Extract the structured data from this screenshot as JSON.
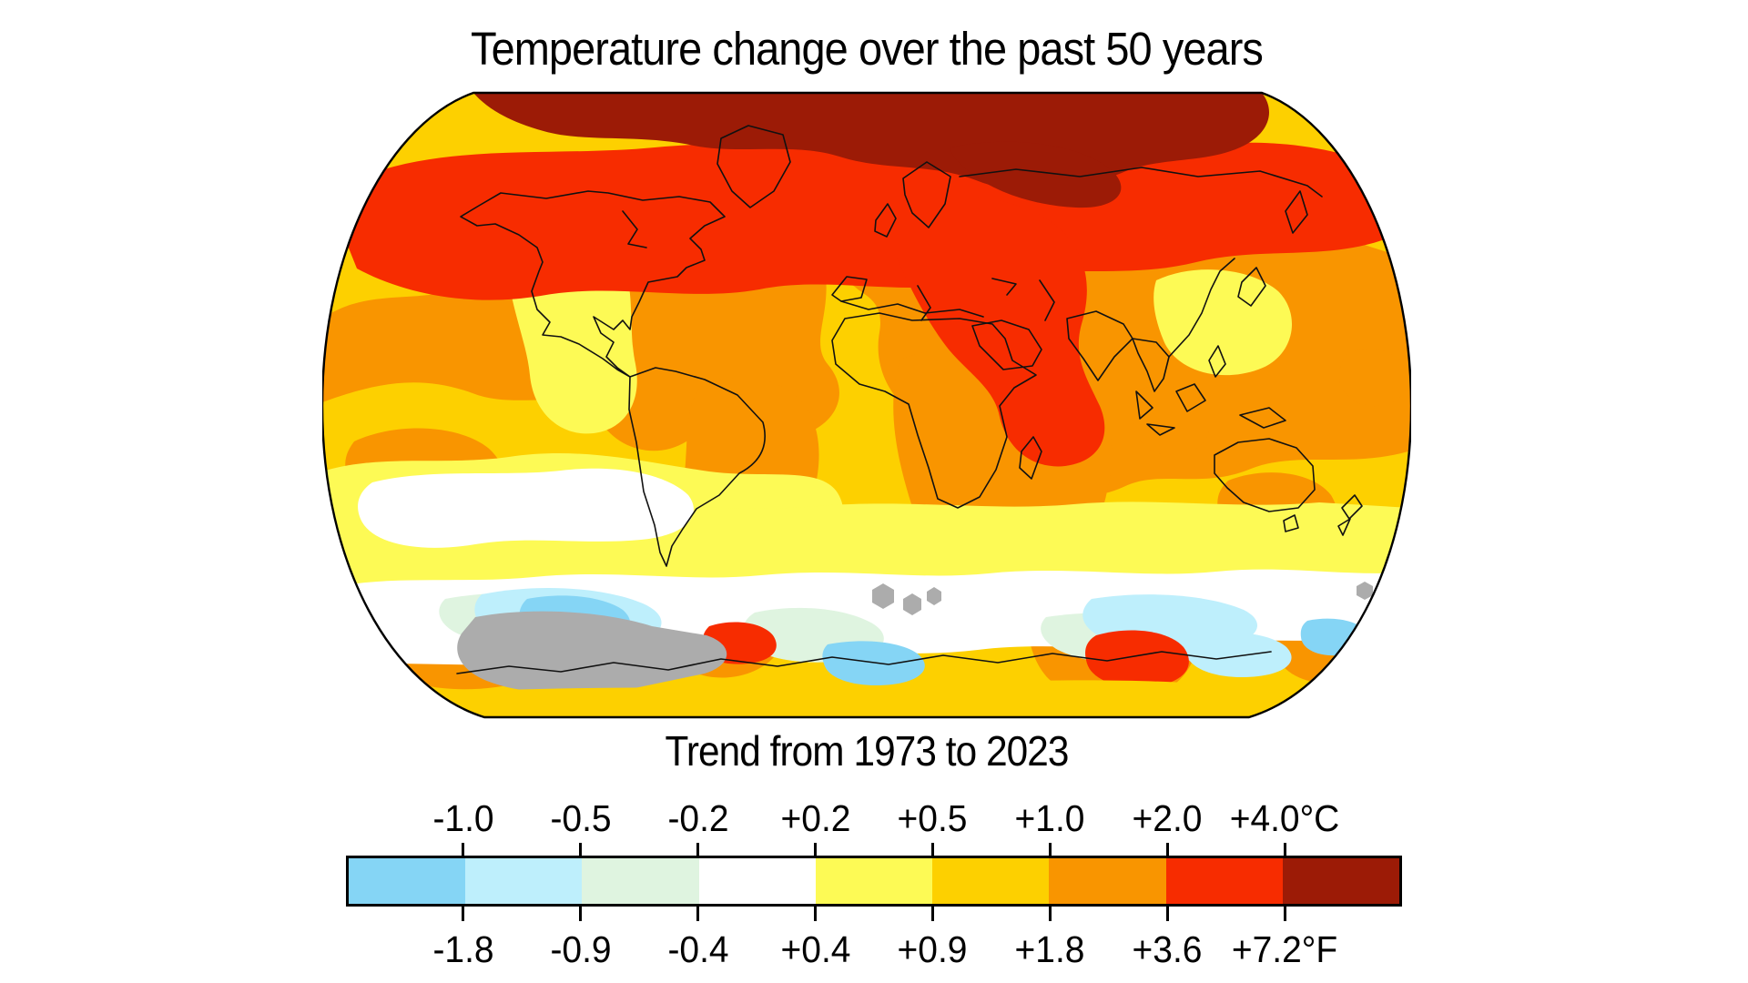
{
  "title": "Temperature change over the past 50 years",
  "subtitle": "Trend from 1973 to 2023",
  "chart_data": {
    "type": "heatmap",
    "title": "Temperature change over the past 50 years",
    "subtitle": "Trend from 1973 to 2023",
    "projection_note": "world map, Robinson-style projection, temperature trend choropleth",
    "legend_position": "bottom",
    "units": [
      "°C",
      "°F"
    ],
    "celsius_labels": [
      "-1.0",
      "-0.5",
      "-0.2",
      "+0.2",
      "+0.5",
      "+1.0",
      "+2.0",
      "+4.0°C"
    ],
    "fahrenheit_labels": [
      "-1.8",
      "-0.9",
      "-0.4",
      "+0.4",
      "+0.9",
      "+1.8",
      "+3.6",
      "+7.2°F"
    ],
    "scale_colors": [
      "#85D5F5",
      "#BEEFFC",
      "#DFF4E0",
      "#FFFFFF",
      "#FDFA55",
      "#FDD000",
      "#F99500",
      "#F72C00",
      "#9C1B06"
    ],
    "colors": {
      "gold": "#FDD000",
      "orange": "#F99500",
      "yellow": "#FDFA55",
      "white": "#FFFFFF",
      "mint": "#DFF4E0",
      "pale_blue": "#BEEFFC",
      "blue": "#85D5F5",
      "red": "#F72C00",
      "dark_red": "#9C1B06",
      "gray_no_data": "#ACACAC",
      "coastline": "#111111",
      "background": "#FFFFFF"
    }
  }
}
